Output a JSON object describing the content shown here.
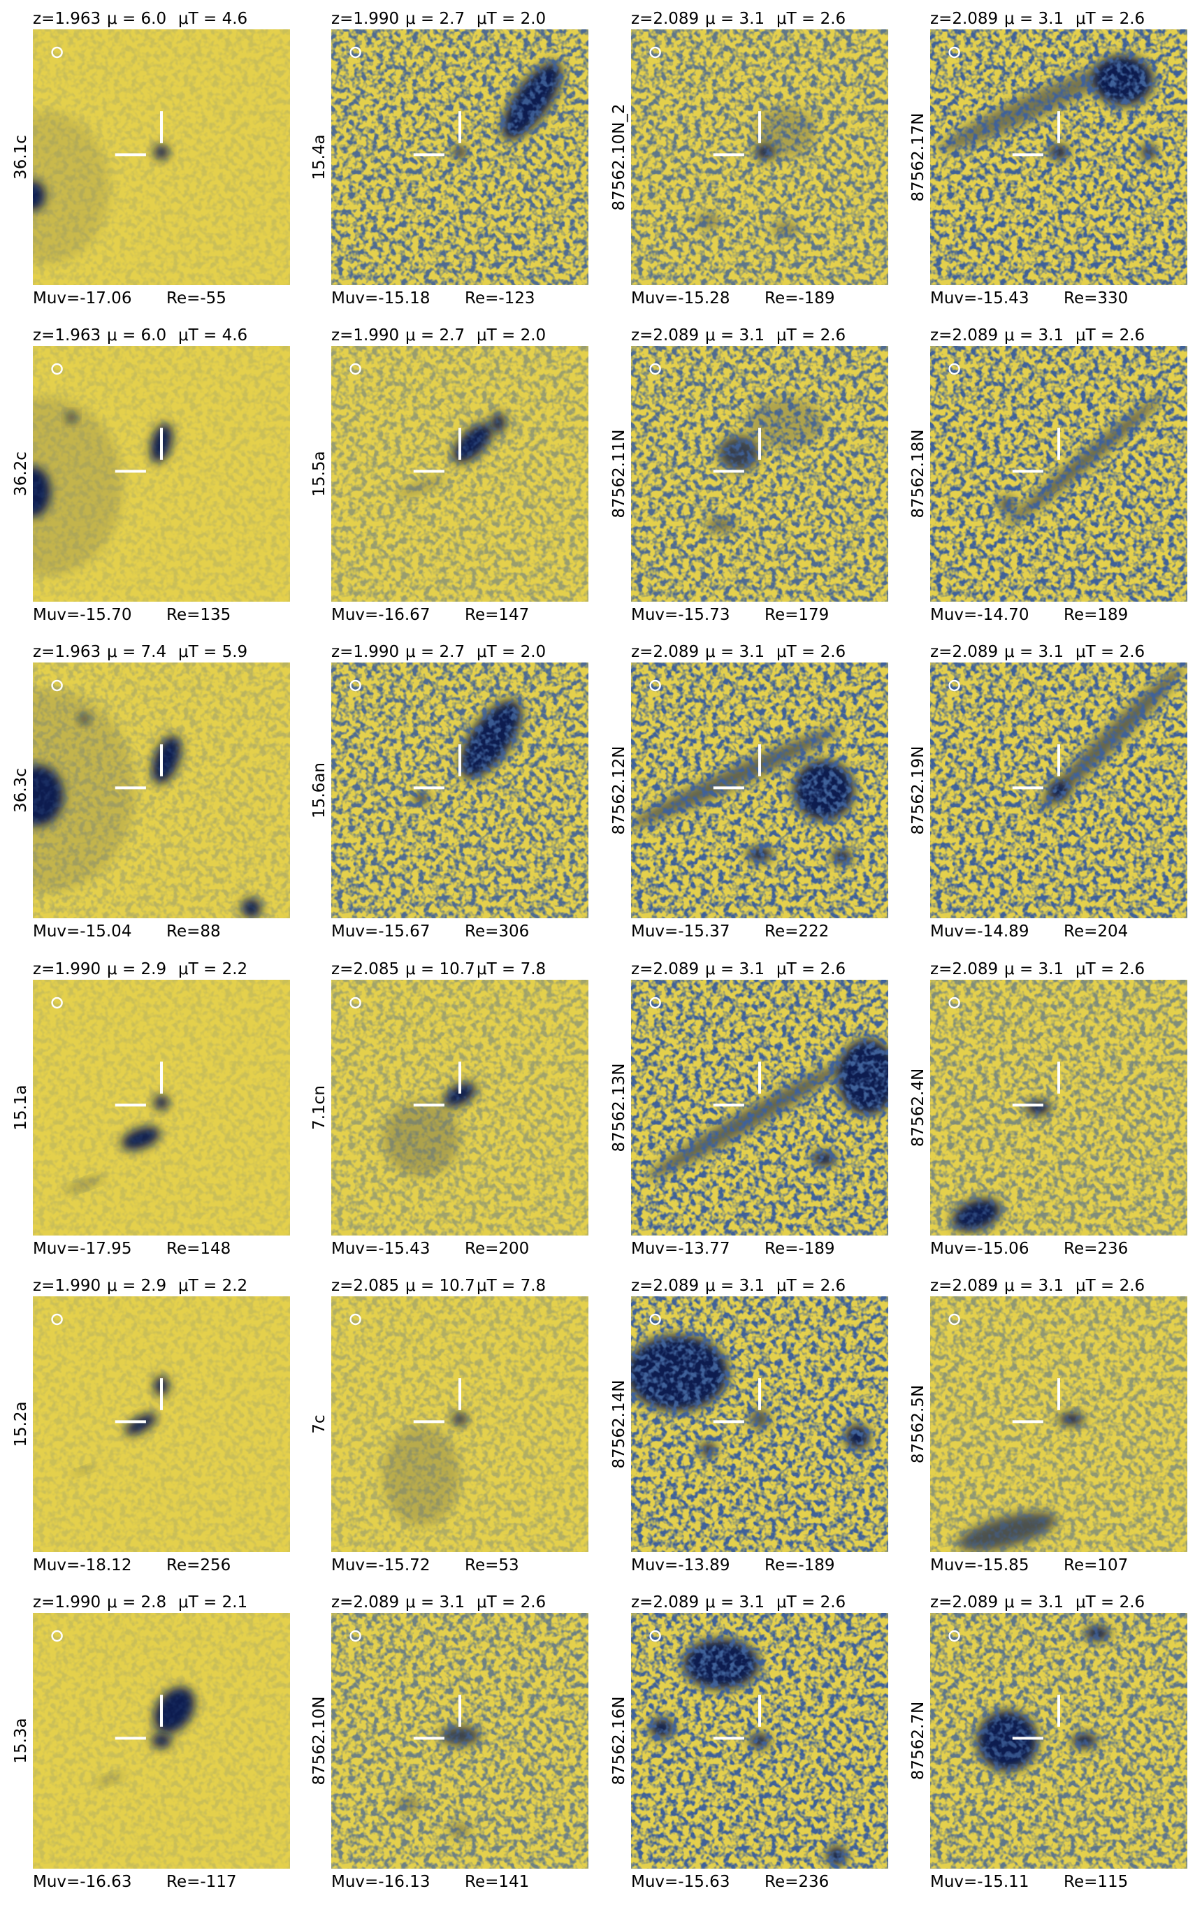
{
  "panels": [
    {
      "z": "z=1.963",
      "mu": "μ = 6.0",
      "mu_t": "μT = 4.6",
      "id": "36.1c",
      "muv": "Muv=-17.06",
      "re": "Re=-55"
    },
    {
      "z": "z=1.990",
      "mu": "μ = 2.7",
      "mu_t": "μT = 2.0",
      "id": "15.4a",
      "muv": "Muv=-15.18",
      "re": "Re=-123"
    },
    {
      "z": "z=2.089",
      "mu": "μ = 3.1",
      "mu_t": "μT = 2.6",
      "id": "87562.10N_2",
      "muv": "Muv=-15.28",
      "re": "Re=-189"
    },
    {
      "z": "z=2.089",
      "mu": "μ = 3.1",
      "mu_t": "μT = 2.6",
      "id": "87562.17N",
      "muv": "Muv=-15.43",
      "re": "Re=330"
    },
    {
      "z": "z=1.963",
      "mu": "μ = 6.0",
      "mu_t": "μT = 4.6",
      "id": "36.2c",
      "muv": "Muv=-15.70",
      "re": "Re=135"
    },
    {
      "z": "z=1.990",
      "mu": "μ = 2.7",
      "mu_t": "μT = 2.0",
      "id": "15.5a",
      "muv": "Muv=-16.67",
      "re": "Re=147"
    },
    {
      "z": "z=2.089",
      "mu": "μ = 3.1",
      "mu_t": "μT = 2.6",
      "id": "87562.11N",
      "muv": "Muv=-15.73",
      "re": "Re=179"
    },
    {
      "z": "z=2.089",
      "mu": "μ = 3.1",
      "mu_t": "μT = 2.6",
      "id": "87562.18N",
      "muv": "Muv=-14.70",
      "re": "Re=189"
    },
    {
      "z": "z=1.963",
      "mu": "μ = 7.4",
      "mu_t": "μT = 5.9",
      "id": "36.3c",
      "muv": "Muv=-15.04",
      "re": "Re=88"
    },
    {
      "z": "z=1.990",
      "mu": "μ = 2.7",
      "mu_t": "μT = 2.0",
      "id": "15.6an",
      "muv": "Muv=-15.67",
      "re": "Re=306"
    },
    {
      "z": "z=2.089",
      "mu": "μ = 3.1",
      "mu_t": "μT = 2.6",
      "id": "87562.12N",
      "muv": "Muv=-15.37",
      "re": "Re=222"
    },
    {
      "z": "z=2.089",
      "mu": "μ = 3.1",
      "mu_t": "μT = 2.6",
      "id": "87562.19N",
      "muv": "Muv=-14.89",
      "re": "Re=204"
    },
    {
      "z": "z=1.990",
      "mu": "μ = 2.9",
      "mu_t": "μT = 2.2",
      "id": "15.1a",
      "muv": "Muv=-17.95",
      "re": "Re=148"
    },
    {
      "z": "z=2.085",
      "mu": "μ = 10.7",
      "mu_t": "μT = 7.8",
      "id": "7.1cn",
      "muv": "Muv=-15.43",
      "re": "Re=200"
    },
    {
      "z": "z=2.089",
      "mu": "μ = 3.1",
      "mu_t": "μT = 2.6",
      "id": "87562.13N",
      "muv": "Muv=-13.77",
      "re": "Re=-189"
    },
    {
      "z": "z=2.089",
      "mu": "μ = 3.1",
      "mu_t": "μT = 2.6",
      "id": "87562.4N",
      "muv": "Muv=-15.06",
      "re": "Re=236"
    },
    {
      "z": "z=1.990",
      "mu": "μ = 2.9",
      "mu_t": "μT = 2.2",
      "id": "15.2a",
      "muv": "Muv=-18.12",
      "re": "Re=256"
    },
    {
      "z": "z=2.085",
      "mu": "μ = 10.7",
      "mu_t": "μT = 7.8",
      "id": "7c",
      "muv": "Muv=-15.72",
      "re": "Re=53"
    },
    {
      "z": "z=2.089",
      "mu": "μ = 3.1",
      "mu_t": "μT = 2.6",
      "id": "87562.14N",
      "muv": "Muv=-13.89",
      "re": "Re=-189"
    },
    {
      "z": "z=2.089",
      "mu": "μ = 3.1",
      "mu_t": "μT = 2.6",
      "id": "87562.5N",
      "muv": "Muv=-15.85",
      "re": "Re=107"
    },
    {
      "z": "z=1.990",
      "mu": "μ = 2.8",
      "mu_t": "μT = 2.1",
      "id": "15.3a",
      "muv": "Muv=-16.63",
      "re": "Re=-117"
    },
    {
      "z": "z=2.089",
      "mu": "μ = 3.1",
      "mu_t": "μT = 2.6",
      "id": "87562.10N",
      "muv": "Muv=-16.13",
      "re": "Re=141"
    },
    {
      "z": "z=2.089",
      "mu": "μ = 3.1",
      "mu_t": "μT = 2.6",
      "id": "87562.16N",
      "muv": "Muv=-15.63",
      "re": "Re=236"
    },
    {
      "z": "z=2.089",
      "mu": "μ = 3.1",
      "mu_t": "μT = 2.6",
      "id": "87562.7N",
      "muv": "Muv=-15.11",
      "re": "Re=115"
    }
  ]
}
